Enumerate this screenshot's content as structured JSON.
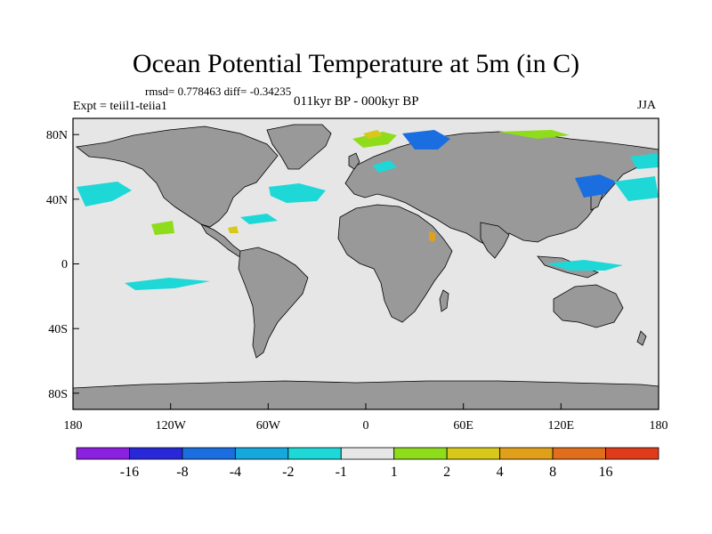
{
  "title": "Ocean Potential Temperature at 5m (in C)",
  "stats_line": "rmsd= 0.778463 diff= -0.34235",
  "experiment_label": "Expt = teiil1-teiia1",
  "period_label": "011kyr BP - 000kyr BP",
  "season_label": "JJA",
  "colors": {
    "land": "#999999",
    "ocean_neutral": "#e6e6e6",
    "frame": "#000000"
  },
  "map": {
    "projection": "equirectangular",
    "lon_range": [
      -180,
      180
    ],
    "lat_range": [
      -90,
      90
    ],
    "x_tick_labels": [
      "180",
      "120W",
      "60W",
      "0",
      "60E",
      "120E",
      "180"
    ],
    "y_tick_labels": [
      "80N",
      "40N",
      "0",
      "40S",
      "80S"
    ]
  },
  "colorbar": {
    "levels": [
      "-16",
      "-8",
      "-4",
      "-2",
      "-1",
      "1",
      "2",
      "4",
      "8",
      "16"
    ],
    "colors": [
      "#8c20e0",
      "#2828d8",
      "#1a6ee0",
      "#14a8dc",
      "#1ed8d8",
      "#e6e6e6",
      "#8fdc1a",
      "#d8c81a",
      "#e0a01a",
      "#e06e1a",
      "#e03c1a"
    ]
  }
}
